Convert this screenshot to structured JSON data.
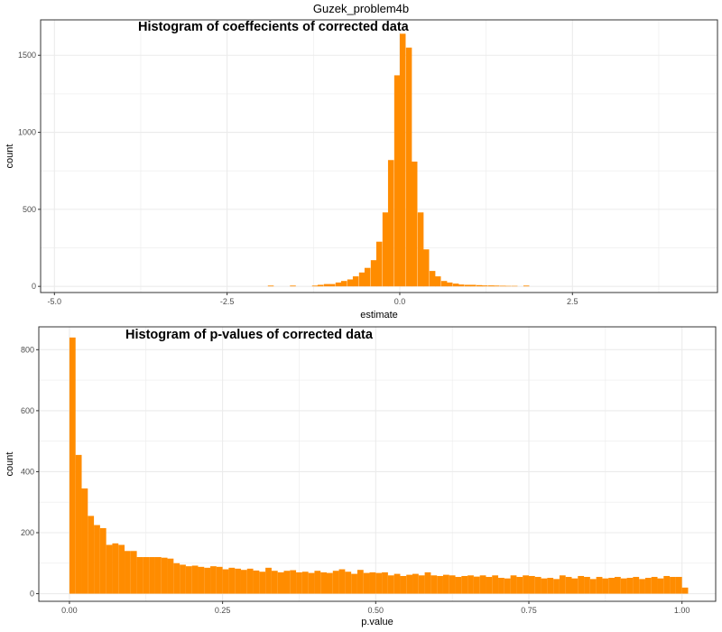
{
  "page": {
    "title": "Guzek_problem4b"
  },
  "colors": {
    "bar": "#FF8C00",
    "grid": "#EBEBEB",
    "panel_border": "#333333"
  },
  "chart_data": [
    {
      "type": "bar",
      "title": "Histogram of coeffecients of corrected data",
      "xlabel": "estimate",
      "ylabel": "count",
      "xlim": [
        -5.2,
        4.6
      ],
      "ylim": [
        -40,
        1730
      ],
      "xticks": [
        -5.0,
        -2.5,
        0.0,
        2.5
      ],
      "xtick_labels": [
        "-5.0",
        "-2.5",
        "0.0",
        "2.5"
      ],
      "yticks": [
        0,
        500,
        1000,
        1500
      ],
      "ytick_labels": [
        "0",
        "500",
        "1000",
        "1500"
      ],
      "grid": true,
      "bin_width": 0.085,
      "x": [
        -1.91,
        -1.59,
        -1.27,
        -1.19,
        -1.1,
        -1.02,
        -0.93,
        -0.85,
        -0.76,
        -0.68,
        -0.59,
        -0.51,
        -0.42,
        -0.34,
        -0.25,
        -0.17,
        -0.08,
        0.0,
        0.09,
        0.17,
        0.26,
        0.34,
        0.43,
        0.51,
        0.6,
        0.68,
        0.77,
        0.85,
        0.94,
        1.02,
        1.11,
        1.19,
        1.28,
        1.36,
        1.45,
        1.53,
        1.62,
        1.79
      ],
      "values": [
        5,
        5,
        5,
        10,
        15,
        15,
        25,
        35,
        45,
        65,
        90,
        120,
        170,
        290,
        480,
        820,
        1370,
        1640,
        1550,
        810,
        480,
        240,
        100,
        65,
        35,
        25,
        18,
        12,
        10,
        10,
        8,
        6,
        6,
        5,
        4,
        3,
        3,
        5
      ]
    },
    {
      "type": "bar",
      "title": "Histogram of p-values of corrected data",
      "xlabel": "p.value",
      "ylabel": "count",
      "xlim": [
        -0.05,
        1.055
      ],
      "ylim": [
        -25,
        875
      ],
      "xticks": [
        0.0,
        0.25,
        0.5,
        0.75,
        1.0
      ],
      "xtick_labels": [
        "0.00",
        "0.25",
        "0.50",
        "0.75",
        "1.00"
      ],
      "yticks": [
        0,
        200,
        400,
        600,
        800
      ],
      "ytick_labels": [
        "0",
        "200",
        "400",
        "600",
        "800"
      ],
      "grid": true,
      "bin_width": 0.01,
      "x": [
        0.0,
        0.01,
        0.02,
        0.03,
        0.04,
        0.05,
        0.06,
        0.07,
        0.08,
        0.09,
        0.1,
        0.11,
        0.12,
        0.13,
        0.14,
        0.15,
        0.16,
        0.17,
        0.18,
        0.19,
        0.2,
        0.21,
        0.22,
        0.23,
        0.24,
        0.25,
        0.26,
        0.27,
        0.28,
        0.29,
        0.3,
        0.31,
        0.32,
        0.33,
        0.34,
        0.35,
        0.36,
        0.37,
        0.38,
        0.39,
        0.4,
        0.41,
        0.42,
        0.43,
        0.44,
        0.45,
        0.46,
        0.47,
        0.48,
        0.49,
        0.5,
        0.51,
        0.52,
        0.53,
        0.54,
        0.55,
        0.56,
        0.57,
        0.58,
        0.59,
        0.6,
        0.61,
        0.62,
        0.63,
        0.64,
        0.65,
        0.66,
        0.67,
        0.68,
        0.69,
        0.7,
        0.71,
        0.72,
        0.73,
        0.74,
        0.75,
        0.76,
        0.77,
        0.78,
        0.79,
        0.8,
        0.81,
        0.82,
        0.83,
        0.84,
        0.85,
        0.86,
        0.87,
        0.88,
        0.89,
        0.9,
        0.91,
        0.92,
        0.93,
        0.94,
        0.95,
        0.96,
        0.97,
        0.98,
        0.99,
        1.0
      ],
      "values": [
        840,
        455,
        345,
        255,
        225,
        215,
        160,
        165,
        160,
        140,
        140,
        120,
        120,
        120,
        120,
        118,
        115,
        100,
        95,
        90,
        92,
        88,
        85,
        90,
        88,
        80,
        85,
        82,
        78,
        82,
        76,
        72,
        85,
        75,
        70,
        75,
        77,
        70,
        72,
        68,
        75,
        70,
        68,
        75,
        80,
        72,
        65,
        78,
        68,
        70,
        68,
        70,
        60,
        65,
        58,
        62,
        65,
        60,
        70,
        60,
        58,
        62,
        60,
        55,
        58,
        60,
        56,
        60,
        55,
        60,
        52,
        50,
        60,
        55,
        60,
        58,
        55,
        50,
        52,
        48,
        60,
        55,
        50,
        58,
        55,
        48,
        55,
        50,
        52,
        55,
        50,
        52,
        55,
        48,
        52,
        55,
        50,
        58,
        55,
        55,
        20
      ]
    }
  ]
}
